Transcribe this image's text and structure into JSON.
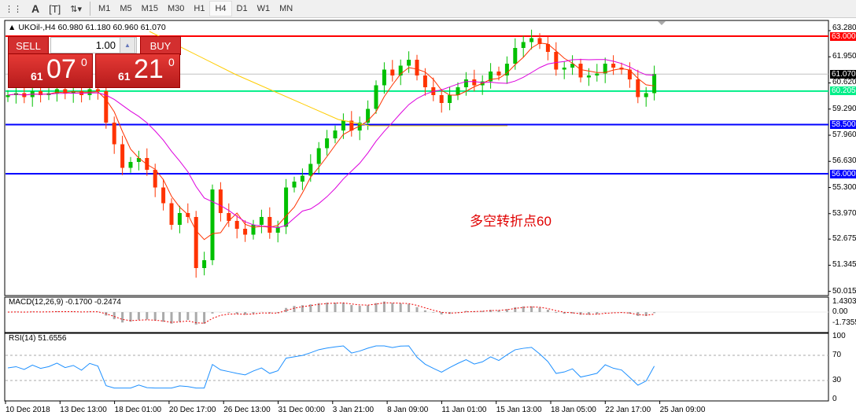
{
  "toolbar": {
    "icons": [
      "period-separator-icon",
      "text-a-icon",
      "text-label-icon",
      "arrows-icon"
    ],
    "timeframes": [
      "M1",
      "M5",
      "M15",
      "M30",
      "H1",
      "H4",
      "D1",
      "W1",
      "MN"
    ],
    "active": "H4"
  },
  "chart": {
    "header": "UKOil-,H4  60.980 61.180 60.960 61.070",
    "note": "多空转折点60"
  },
  "trade_panel": {
    "sell_label": "SELL",
    "buy_label": "BUY",
    "lot": "1.00",
    "sell_prefix": "61",
    "sell_big": "07",
    "buy_prefix": "61",
    "buy_big": "21",
    "deg": "0"
  },
  "price_axis": [
    "63.280",
    "61.950",
    "60.620",
    "59.290",
    "57.960",
    "56.630",
    "55.300",
    "53.970",
    "52.675",
    "51.345",
    "50.015"
  ],
  "levels": [
    {
      "label": "63.000",
      "value": 63.0,
      "color": "#ff0000"
    },
    {
      "label": "61.070",
      "value": 61.07,
      "color": "#000000"
    },
    {
      "label": "60.205",
      "value": 60.205,
      "color": "#00ee88"
    },
    {
      "label": "58.500",
      "value": 58.5,
      "color": "#0000ff"
    },
    {
      "label": "56.000",
      "value": 56.0,
      "color": "#0000ff"
    }
  ],
  "macd": {
    "label": "MACD(12,26,9) -0.1700 -0.2474",
    "axis": [
      "1.4303",
      "0.00",
      "-1.7355"
    ]
  },
  "rsi": {
    "label": "RSI(14) 51.6556",
    "axis": [
      "100",
      "70",
      "30",
      "0"
    ]
  },
  "time_axis": [
    "10 Dec 2018",
    "13 Dec 13:00",
    "18 Dec 01:00",
    "20 Dec 17:00",
    "26 Dec 13:00",
    "31 Dec 00:00",
    "3 Jan 21:00",
    "8 Jan 09:00",
    "11 Jan 01:00",
    "15 Jan 13:00",
    "18 Jan 05:00",
    "22 Jan 17:00",
    "25 Jan 09:00"
  ],
  "chart_data": {
    "type": "candlestick",
    "symbol": "UKOil-",
    "timeframe": "H4",
    "ylim": [
      50.015,
      63.28
    ],
    "closes": [
      60.0,
      60.1,
      59.9,
      60.2,
      60.0,
      60.1,
      60.3,
      60.1,
      60.2,
      60.0,
      60.3,
      60.2,
      58.6,
      57.5,
      56.3,
      56.6,
      56.8,
      56.2,
      55.3,
      54.5,
      53.4,
      54.0,
      53.8,
      51.2,
      51.6,
      55.2,
      54.0,
      53.6,
      53.2,
      52.9,
      53.4,
      53.8,
      53.0,
      53.3,
      55.3,
      55.6,
      55.9,
      56.5,
      57.3,
      57.8,
      58.2,
      58.7,
      58.2,
      58.6,
      59.3,
      60.5,
      61.3,
      61.0,
      61.5,
      61.8,
      61.0,
      60.4,
      60.0,
      59.6,
      60.0,
      60.4,
      60.8,
      60.5,
      60.7,
      61.2,
      61.0,
      61.6,
      62.4,
      62.7,
      62.9,
      62.6,
      62.2,
      61.3,
      61.4,
      61.6,
      60.9,
      61.0,
      61.1,
      61.6,
      61.4,
      61.3,
      60.8,
      59.9,
      60.1,
      61.07
    ],
    "colors": {
      "up": "#00c000",
      "down": "#ff3300",
      "ma_fast": "#ff3300",
      "ma_slow": "#dd00dd",
      "ma_long": "#ffcc00"
    }
  }
}
